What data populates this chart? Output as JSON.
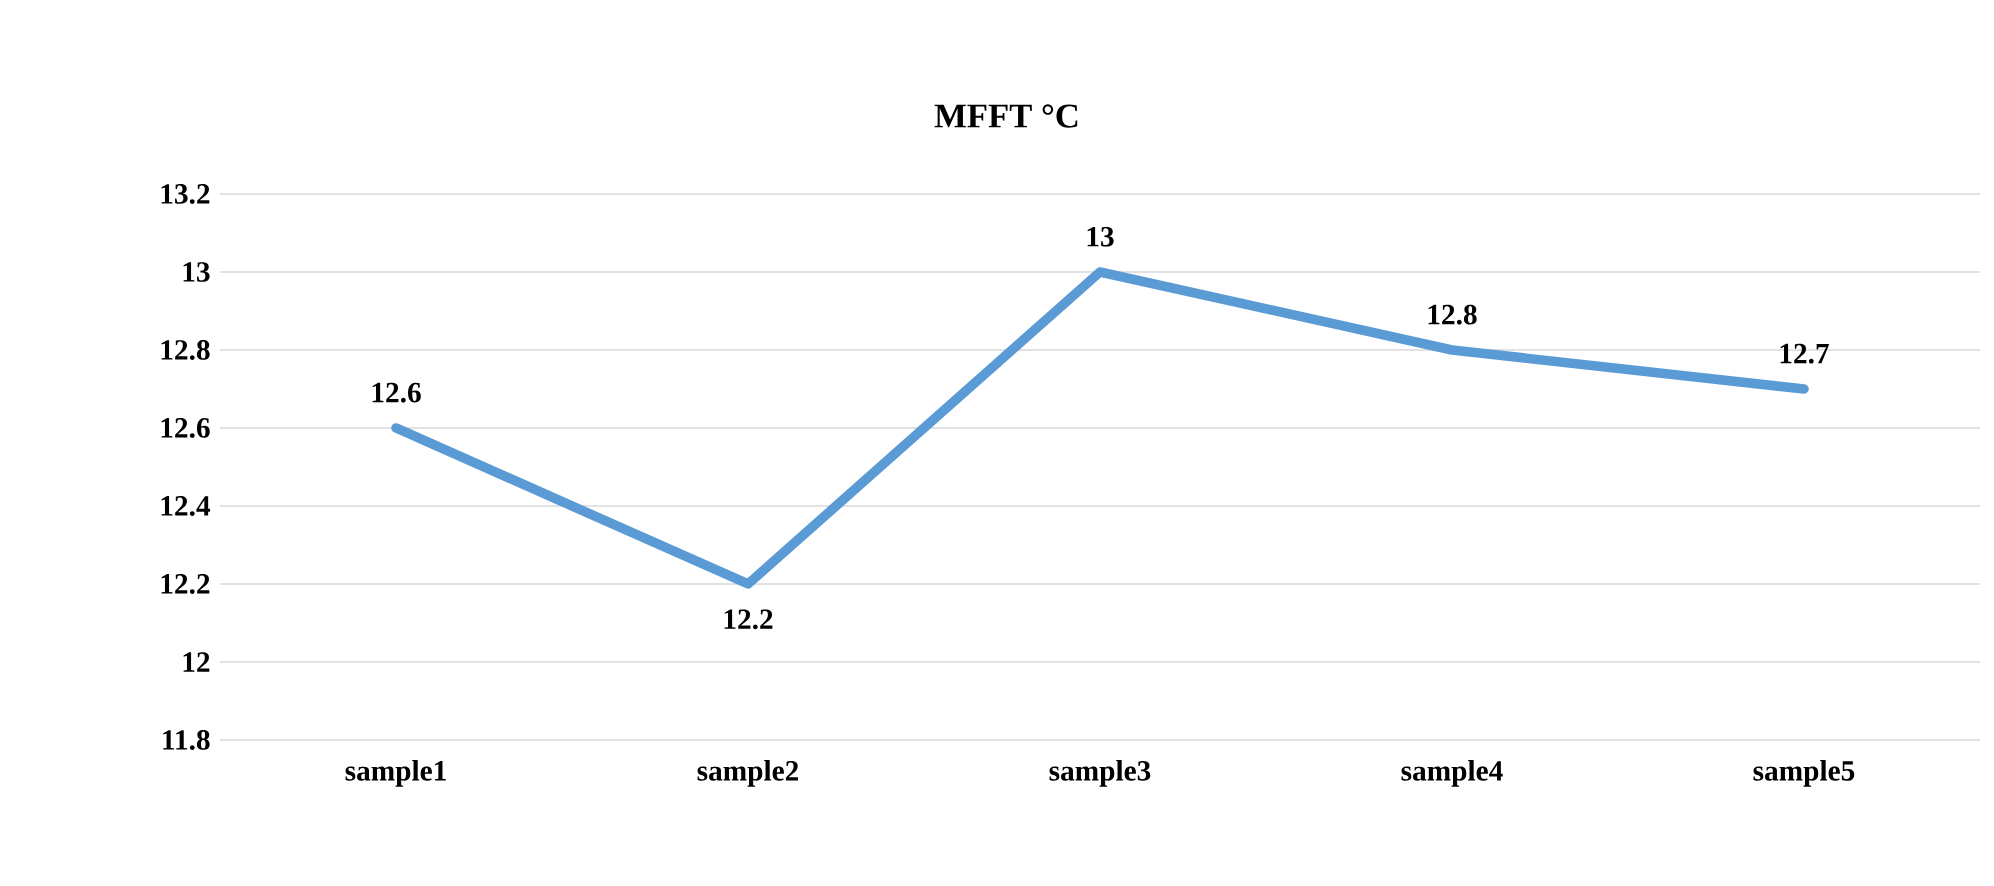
{
  "chart_data": {
    "type": "line",
    "title": "MFFT °C",
    "categories": [
      "sample1",
      "sample2",
      "sample3",
      "sample4",
      "sample5"
    ],
    "series": [
      {
        "color": "#5b9bd5",
        "values": [
          12.6,
          12.2,
          13,
          12.8,
          12.7
        ]
      }
    ],
    "ylim": [
      11.8,
      13.2
    ],
    "yticks": [
      11.8,
      12,
      12.2,
      12.4,
      12.6,
      12.8,
      13,
      13.2
    ],
    "grid": "y",
    "data_labels": true,
    "marker": "none",
    "line_style": "solid"
  }
}
